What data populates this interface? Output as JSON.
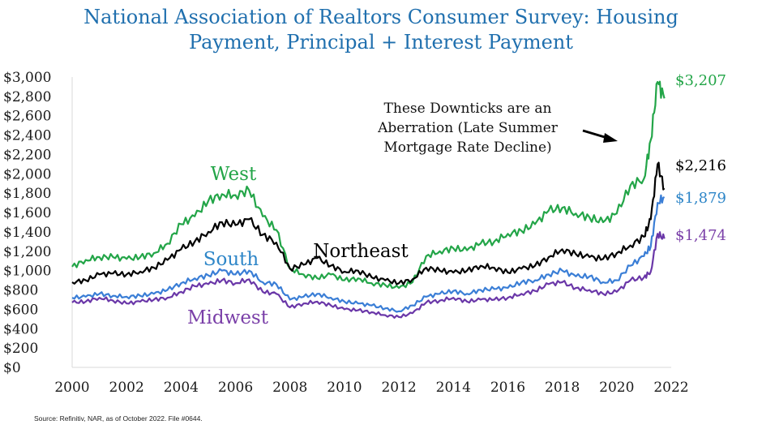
{
  "chart_data": {
    "type": "line",
    "title_line1": "National Association of Realtors Consumer Survey: Housing",
    "title_line2": "Payment, Principal + Interest Payment",
    "xlabel": "",
    "ylabel": "",
    "xlim": [
      2000,
      2022
    ],
    "ylim": [
      0,
      3000
    ],
    "x_ticks": [
      "2000",
      "2002",
      "2004",
      "2006",
      "2008",
      "2010",
      "2012",
      "2014",
      "2016",
      "2018",
      "2020",
      "2022"
    ],
    "y_ticks": [
      "$0",
      "$200",
      "$400",
      "$600",
      "$800",
      "$1,000",
      "$1,200",
      "$1,400",
      "$1,600",
      "$1,800",
      "$2,000",
      "$2,200",
      "$2,400",
      "$2,600",
      "$2,800",
      "$3,000"
    ],
    "grid": false,
    "x": [
      2000,
      2000.5,
      2001,
      2001.5,
      2002,
      2002.5,
      2003,
      2003.5,
      2004,
      2004.5,
      2005,
      2005.5,
      2006,
      2006.5,
      2007,
      2007.5,
      2008,
      2008.5,
      2009,
      2009.5,
      2010,
      2010.5,
      2011,
      2011.5,
      2012,
      2012.5,
      2013,
      2013.5,
      2014,
      2014.5,
      2015,
      2015.5,
      2016,
      2016.5,
      2017,
      2017.5,
      2018,
      2018.5,
      2019,
      2019.5,
      2020,
      2020.5,
      2021,
      2021.25,
      2021.5,
      2021.75
    ],
    "series": [
      {
        "name": "West",
        "color": "#23a548",
        "label_color": "#23a548",
        "values": [
          1040,
          1110,
          1140,
          1140,
          1120,
          1140,
          1180,
          1280,
          1480,
          1560,
          1720,
          1790,
          1780,
          1830,
          1560,
          1420,
          1020,
          960,
          920,
          960,
          900,
          920,
          870,
          850,
          820,
          880,
          1150,
          1200,
          1230,
          1210,
          1280,
          1300,
          1380,
          1410,
          1480,
          1620,
          1650,
          1590,
          1550,
          1500,
          1590,
          1880,
          1950,
          2350,
          2950,
          2780
        ]
      },
      {
        "name": "Northeast",
        "color": "#000000",
        "label_color": "#000000",
        "values": [
          880,
          900,
          960,
          970,
          960,
          990,
          1030,
          1110,
          1220,
          1300,
          1400,
          1500,
          1470,
          1530,
          1370,
          1290,
          1020,
          1060,
          1130,
          1050,
          990,
          1000,
          930,
          900,
          870,
          910,
          1030,
          1000,
          980,
          1000,
          1050,
          1030,
          980,
          1020,
          1050,
          1140,
          1220,
          1170,
          1140,
          1120,
          1180,
          1260,
          1350,
          1530,
          2100,
          1850
        ]
      },
      {
        "name": "South",
        "color": "#3a7ed6",
        "label_color": "#2e86c8",
        "values": [
          720,
          730,
          760,
          740,
          730,
          740,
          760,
          800,
          870,
          920,
          950,
          1000,
          960,
          1000,
          880,
          860,
          700,
          730,
          760,
          720,
          680,
          660,
          640,
          610,
          580,
          640,
          730,
          760,
          790,
          760,
          800,
          810,
          820,
          880,
          900,
          960,
          1000,
          940,
          940,
          880,
          900,
          1050,
          1150,
          1250,
          1700,
          1760
        ]
      },
      {
        "name": "Midwest",
        "color": "#6a37a8",
        "label_color": "#7a3fa8",
        "values": [
          670,
          680,
          720,
          690,
          660,
          680,
          700,
          720,
          780,
          840,
          860,
          900,
          870,
          910,
          780,
          760,
          620,
          660,
          680,
          640,
          600,
          590,
          570,
          540,
          520,
          560,
          670,
          690,
          720,
          680,
          700,
          700,
          720,
          760,
          790,
          860,
          880,
          820,
          800,
          760,
          780,
          900,
          930,
          990,
          1380,
          1330
        ]
      }
    ],
    "end_labels": [
      "$3,207",
      "$2,216",
      "$1,879",
      "$1,474"
    ],
    "annotation": "These Downticks are an\nAberration (Late Summer\nMortgage Rate Decline)",
    "source": "Source: Refinitiv, NAR, as of October 2022. File #0644."
  }
}
